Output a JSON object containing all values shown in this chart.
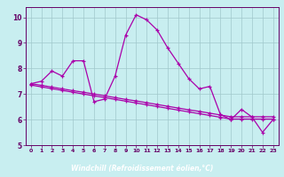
{
  "xlabel": "Windchill (Refroidissement éolien,°C)",
  "xlim": [
    -0.5,
    23.5
  ],
  "ylim": [
    5,
    10.4
  ],
  "yticks": [
    5,
    6,
    7,
    8,
    9,
    10
  ],
  "xticks": [
    0,
    1,
    2,
    3,
    4,
    5,
    6,
    7,
    8,
    9,
    10,
    11,
    12,
    13,
    14,
    15,
    16,
    17,
    18,
    19,
    20,
    21,
    22,
    23
  ],
  "bg_color": "#c8eef0",
  "grid_color": "#a0c8cc",
  "line_color": "#aa00aa",
  "xlabel_bg": "#660066",
  "xlabel_fg": "#ffffff",
  "spine_color": "#660066",
  "tick_color": "#660066",
  "line1_x": [
    0,
    1,
    2,
    3,
    4,
    5,
    6,
    7,
    8,
    9,
    10,
    11,
    12,
    13,
    14,
    15,
    16,
    17,
    18,
    19,
    20,
    21,
    22,
    23
  ],
  "line1_y": [
    7.4,
    7.5,
    7.9,
    7.7,
    8.3,
    8.3,
    6.7,
    6.8,
    7.7,
    9.3,
    10.1,
    9.9,
    9.5,
    8.8,
    8.2,
    7.6,
    7.2,
    7.3,
    6.2,
    6.0,
    6.4,
    6.1,
    5.5,
    6.0
  ],
  "line2_x": [
    0,
    1,
    2,
    3,
    4,
    5,
    6,
    7,
    8,
    9,
    10,
    11,
    12,
    13,
    14,
    15,
    16,
    17,
    18,
    19,
    20,
    21,
    22,
    23
  ],
  "line2_y": [
    7.35,
    7.28,
    7.21,
    7.14,
    7.07,
    7.0,
    6.93,
    6.86,
    6.79,
    6.72,
    6.65,
    6.58,
    6.51,
    6.44,
    6.37,
    6.3,
    6.23,
    6.16,
    6.09,
    6.02,
    6.02,
    6.02,
    6.02,
    6.02
  ],
  "line3_x": [
    0,
    1,
    2,
    3,
    4,
    5,
    6,
    7,
    8,
    9,
    10,
    11,
    12,
    13,
    14,
    15,
    16,
    17,
    18,
    19,
    20,
    21,
    22,
    23
  ],
  "line3_y": [
    7.4,
    7.34,
    7.27,
    7.2,
    7.13,
    7.07,
    7.0,
    6.93,
    6.86,
    6.79,
    6.73,
    6.66,
    6.59,
    6.52,
    6.45,
    6.38,
    6.32,
    6.25,
    6.18,
    6.11,
    6.11,
    6.11,
    6.11,
    6.11
  ]
}
